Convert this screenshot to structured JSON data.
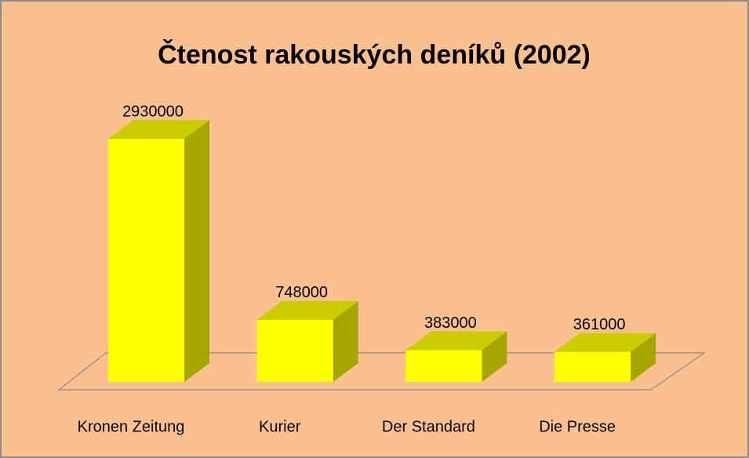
{
  "chart_data": {
    "type": "bar3d",
    "title": "Čtenost rakouských deníků (2002)",
    "categories": [
      "Kronen Zeitung",
      "Kurier",
      "Der Standard",
      "Die Presse"
    ],
    "values": [
      2930000,
      748000,
      383000,
      361000
    ],
    "color": "#ffff00"
  }
}
